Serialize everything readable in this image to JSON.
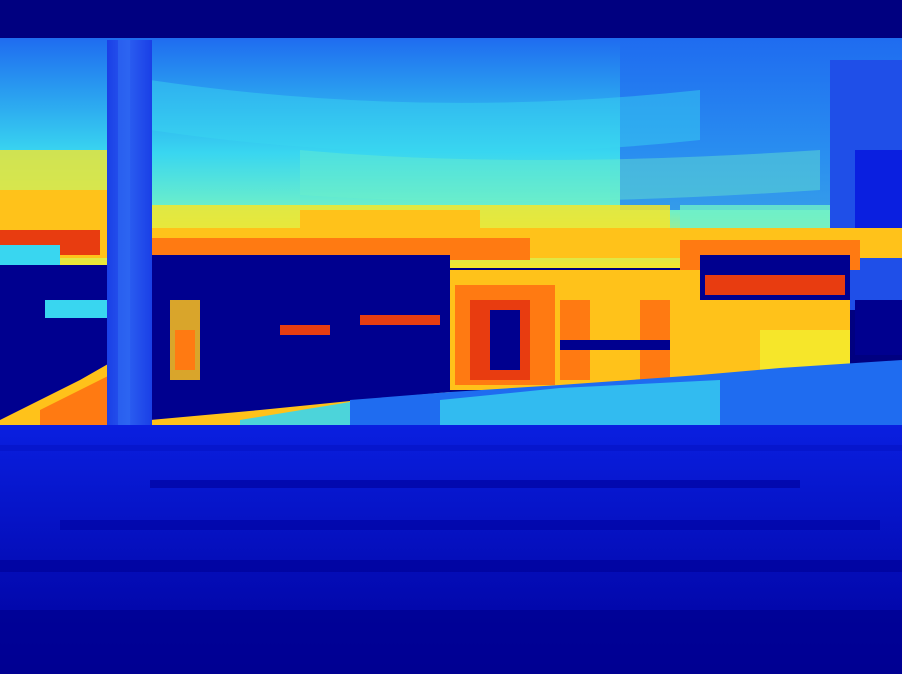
{
  "image": {
    "kind": "depth-map",
    "colormap": "jet",
    "palette": {
      "deep_blue": "#00008f",
      "blue": "#0a1fe0",
      "mid_blue": "#1f6cf0",
      "sky_blue": "#2aa0f0",
      "cyan": "#39d6f0",
      "aqua": "#6ff0c8",
      "yellow": "#f6e62a",
      "gold": "#ffc21a",
      "orange": "#ff7a12",
      "red_orange": "#e83c10",
      "dark_red": "#9c1a08",
      "navy": "#000080"
    }
  }
}
